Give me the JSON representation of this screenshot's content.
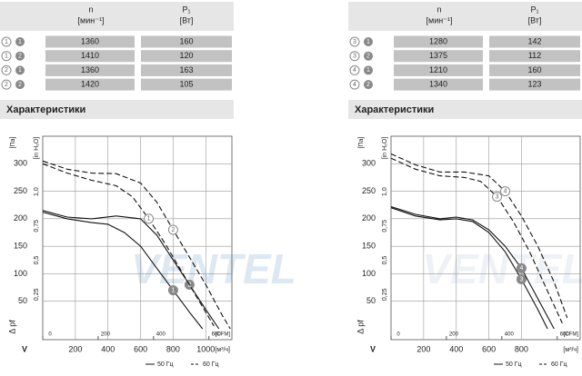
{
  "panels": [
    {
      "header": {
        "n": "n",
        "n_unit": "[мин⁻¹]",
        "p": "P₁",
        "p_unit": "[Вт]"
      },
      "rows": [
        [
          "1",
          "1",
          "1360",
          "160"
        ],
        [
          "1",
          "2",
          "1410",
          "120"
        ],
        [
          "2",
          "1",
          "1360",
          "163"
        ],
        [
          "2",
          "2",
          "1420",
          "105"
        ]
      ],
      "section": "Характеристики"
    },
    {
      "header": {
        "n": "n",
        "n_unit": "[мин⁻¹]",
        "p": "P₁",
        "p_unit": "[Вт]"
      },
      "rows": [
        [
          "3",
          "1",
          "1280",
          "142"
        ],
        [
          "3",
          "2",
          "1375",
          "112"
        ],
        [
          "4",
          "1",
          "1210",
          "160"
        ],
        [
          "4",
          "2",
          "1340",
          "123"
        ]
      ],
      "section": "Характеристики"
    }
  ],
  "watermark": "VENTEL",
  "chart_data": [
    {
      "type": "line",
      "ylabel": "[Па]",
      "ylabel2": "[in H₂O]",
      "pressure": "Δ pf",
      "flow": "V",
      "xunit": "[м³/ч]",
      "x2unit": "[CFM]",
      "ylim": [
        0,
        350
      ],
      "yticks": [
        50,
        100,
        150,
        200,
        250,
        300
      ],
      "y2lim": [
        0,
        1.405
      ],
      "y2ticks": [
        {
          "value": 0.25,
          "label": "0,25"
        },
        {
          "value": 0.5,
          "label": "0,5"
        },
        {
          "value": 0.75,
          "label": "0,75"
        },
        {
          "value": 1,
          "label": "1,0"
        }
      ],
      "xlim": [
        0,
        1160
      ],
      "xticks": [
        200,
        400,
        600,
        800,
        1000
      ],
      "x2lim": [
        0,
        683
      ],
      "x2ticks": [
        0,
        200,
        400,
        600
      ],
      "legend": [
        {
          "label": "50 Гц",
          "dashed": false
        },
        {
          "label": "60 Гц",
          "dashed": true
        }
      ],
      "series": [
        {
          "label": "1",
          "legend": 0,
          "x": [
            0,
            150,
            300,
            400,
            500,
            600,
            700,
            800,
            900,
            980
          ],
          "values": [
            212,
            200,
            193,
            190,
            175,
            150,
            110,
            70,
            30,
            0
          ]
        },
        {
          "label": "2",
          "legend": 0,
          "x": [
            0,
            150,
            300,
            450,
            600,
            700,
            800,
            900,
            1000,
            1080
          ],
          "values": [
            215,
            203,
            200,
            205,
            200,
            170,
            125,
            80,
            35,
            0
          ]
        },
        {
          "label": "1",
          "legend": 1,
          "x": [
            0,
            150,
            300,
            450,
            550,
            650,
            750,
            850,
            950,
            1050
          ],
          "values": [
            300,
            283,
            270,
            260,
            240,
            200,
            155,
            105,
            55,
            5
          ]
        },
        {
          "label": "2",
          "legend": 1,
          "x": [
            0,
            150,
            300,
            450,
            600,
            700,
            800,
            900,
            1000,
            1100,
            1150
          ],
          "values": [
            305,
            290,
            283,
            282,
            265,
            230,
            180,
            130,
            80,
            25,
            0
          ]
        }
      ]
    },
    {
      "type": "line",
      "ylabel": "[Па]",
      "ylabel2": "[in H₂O]",
      "pressure": "Δ pf",
      "flow": "V",
      "xunit": "[м³/ч]",
      "x2unit": "[CFM]",
      "ylim": [
        0,
        350
      ],
      "yticks": [
        50,
        100,
        150,
        200,
        250,
        300
      ],
      "y2lim": [
        0,
        1.405
      ],
      "y2ticks": [
        {
          "value": 0.25,
          "label": "0,25"
        },
        {
          "value": 0.5,
          "label": "0,5"
        },
        {
          "value": 0.75,
          "label": "0,75"
        },
        {
          "value": 1,
          "label": "1,0"
        }
      ],
      "xlim": [
        0,
        1160
      ],
      "xticks": [
        200,
        400,
        600,
        800
      ],
      "x2lim": [
        0,
        683
      ],
      "x2ticks": [
        0,
        200,
        400,
        600
      ],
      "legend": [
        {
          "label": "50 Гц",
          "dashed": false
        },
        {
          "label": "60 Гц",
          "dashed": true
        }
      ],
      "series": [
        {
          "label": "3",
          "legend": 0,
          "x": [
            0,
            150,
            300,
            400,
            500,
            600,
            700,
            800,
            900,
            960
          ],
          "values": [
            220,
            205,
            198,
            200,
            195,
            175,
            140,
            90,
            35,
            0
          ]
        },
        {
          "label": "4",
          "legend": 0,
          "x": [
            0,
            150,
            300,
            400,
            500,
            600,
            700,
            800,
            900,
            1000
          ],
          "values": [
            222,
            208,
            200,
            203,
            198,
            180,
            150,
            110,
            55,
            0
          ]
        },
        {
          "label": "3",
          "legend": 1,
          "x": [
            0,
            150,
            300,
            450,
            550,
            650,
            750,
            850,
            950,
            1050
          ],
          "values": [
            310,
            290,
            278,
            275,
            268,
            240,
            195,
            140,
            75,
            10
          ]
        },
        {
          "label": "4",
          "legend": 1,
          "x": [
            0,
            150,
            300,
            450,
            600,
            700,
            800,
            900,
            1000,
            1080
          ],
          "values": [
            318,
            298,
            285,
            285,
            278,
            250,
            205,
            150,
            85,
            20
          ]
        }
      ]
    }
  ]
}
